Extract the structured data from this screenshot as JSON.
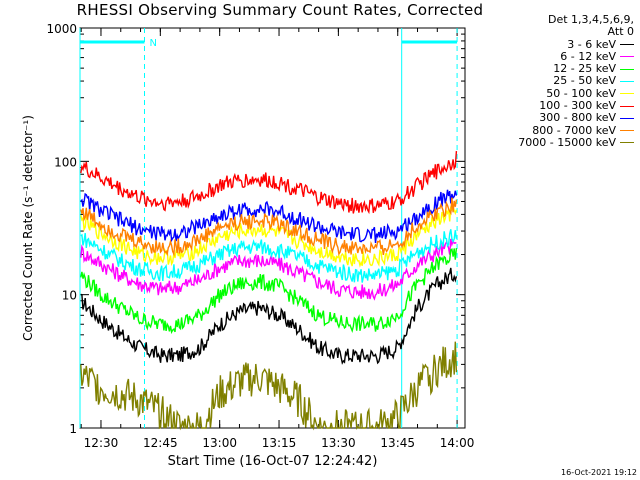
{
  "chart_data": {
    "type": "line",
    "title": "RHESSI Observing Summary Count Rates, Corrected",
    "xlabel": "Start Time (16-Oct-07 12:24:42)",
    "ylabel": "Corrected Count Rate (s⁻¹ detector⁻¹)",
    "yscale": "log",
    "ylim": [
      1,
      1000
    ],
    "y_ticks": [
      1,
      10,
      100,
      1000
    ],
    "y_tick_labels": [
      "1",
      "10",
      "100",
      "1000"
    ],
    "x_ticks": [
      "12:30",
      "12:45",
      "13:00",
      "13:15",
      "13:30",
      "13:45",
      "14:00"
    ],
    "x_range": [
      "12:24:42",
      "14:02"
    ],
    "legend_header": [
      "Det 1,3,4,5,6,9,",
      "Att 0"
    ],
    "legend_position": "right",
    "timestamp": "16-Oct-2021 19:12",
    "night_marks": {
      "label": "N",
      "spans": [
        [
          "12:24:42",
          "12:41"
        ],
        [
          "13:46",
          "14:00"
        ]
      ]
    },
    "x": [
      "12:25",
      "12:30",
      "12:35",
      "12:40",
      "12:45",
      "12:50",
      "12:55",
      "13:00",
      "13:05",
      "13:10",
      "13:15",
      "13:20",
      "13:25",
      "13:30",
      "13:35",
      "13:40",
      "13:45",
      "13:50",
      "13:55",
      "14:00"
    ],
    "series": [
      {
        "name": "3 - 6 keV",
        "color": "#000000",
        "values": [
          9,
          6.5,
          5,
          4,
          3.5,
          3.5,
          4,
          6,
          7.5,
          8,
          7,
          5.5,
          4,
          3.5,
          3.5,
          3.5,
          4,
          8,
          12,
          15
        ]
      },
      {
        "name": "6 - 12 keV",
        "color": "#ff00ff",
        "values": [
          21,
          17,
          14,
          12,
          11,
          11.5,
          13,
          16,
          18,
          18,
          17,
          14.5,
          12.5,
          11,
          10.5,
          10.5,
          12,
          17,
          21,
          24
        ]
      },
      {
        "name": "12 - 25 keV",
        "color": "#00ff00",
        "values": [
          14,
          10,
          8,
          6.5,
          6,
          6,
          7,
          10,
          12,
          12.5,
          11.5,
          9,
          7,
          6.2,
          6,
          6,
          7,
          12,
          17,
          20
        ]
      },
      {
        "name": "25 - 50 keV",
        "color": "#00ffff",
        "values": [
          27,
          22,
          18,
          15.5,
          14.5,
          15,
          17,
          20,
          22.5,
          23,
          21.5,
          19,
          16.5,
          15,
          14,
          14,
          15.5,
          21,
          25,
          28
        ]
      },
      {
        "name": "50 - 100 keV",
        "color": "#ffff00",
        "values": [
          36,
          29,
          24,
          20,
          19,
          19.5,
          22,
          27,
          30,
          31,
          29,
          25,
          21.5,
          19.5,
          18.5,
          18.5,
          20,
          28,
          36,
          42
        ]
      },
      {
        "name": "100 - 300 keV",
        "color": "#ff0000",
        "values": [
          92,
          75,
          62,
          53,
          49,
          50,
          55,
          66,
          72,
          73,
          70,
          61,
          53,
          48,
          46,
          46,
          50,
          66,
          85,
          105
        ]
      },
      {
        "name": "300 - 800 keV",
        "color": "#0000ff",
        "values": [
          53,
          43,
          36,
          31,
          28.5,
          29,
          33,
          39,
          43,
          44,
          42,
          37,
          32,
          29,
          28,
          28,
          30,
          39,
          50,
          58
        ]
      },
      {
        "name": "800 - 7000 keV",
        "color": "#ff8000",
        "values": [
          43,
          34,
          28,
          24.5,
          22.5,
          23,
          26,
          32,
          35,
          36,
          34,
          29.5,
          25.5,
          23,
          22,
          22,
          24,
          33,
          42,
          49
        ]
      },
      {
        "name": "7000 - 15000 keV",
        "color": "#808000",
        "values": [
          2.5,
          2,
          1.8,
          1.6,
          1.3,
          1,
          1,
          1.8,
          2.2,
          2.4,
          2,
          1.6,
          1,
          1,
          1,
          1,
          1.2,
          2,
          2.8,
          3.5
        ]
      }
    ]
  }
}
